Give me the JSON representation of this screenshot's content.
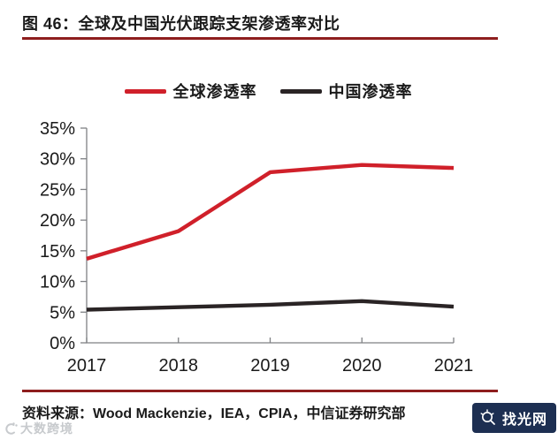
{
  "header": {
    "title": "图 46：全球及中国光伏跟踪支架渗透率对比"
  },
  "chart_data": {
    "type": "line",
    "x": [
      2017,
      2018,
      2019,
      2020,
      2021
    ],
    "series": [
      {
        "name": "全球渗透率",
        "color": "#d0202a",
        "values": [
          13.7,
          18.2,
          27.8,
          29.0,
          28.5
        ]
      },
      {
        "name": "中国渗透率",
        "color": "#2a2425",
        "values": [
          5.4,
          5.8,
          6.2,
          6.8,
          5.9
        ]
      }
    ],
    "title": "",
    "xlabel": "",
    "ylabel": "",
    "ylim": [
      0,
      35
    ],
    "ytick_step": 5,
    "ytick_labels": [
      "0%",
      "5%",
      "10%",
      "15%",
      "20%",
      "25%",
      "30%",
      "35%"
    ],
    "grid": false,
    "legend_position": "top"
  },
  "footer": {
    "source": "资料来源：Wood Mackenzie，IEA，CPIA，中信证券研究部"
  },
  "watermarks": {
    "bottom_left": "大数跨境",
    "bottom_right": "找光网"
  },
  "colors": {
    "text": "#1a1a1a",
    "axis": "#7f8184",
    "rule": "#8e1e1e",
    "badge_bg": "#1d2f52",
    "watermark_gray": "#c7cacd"
  }
}
